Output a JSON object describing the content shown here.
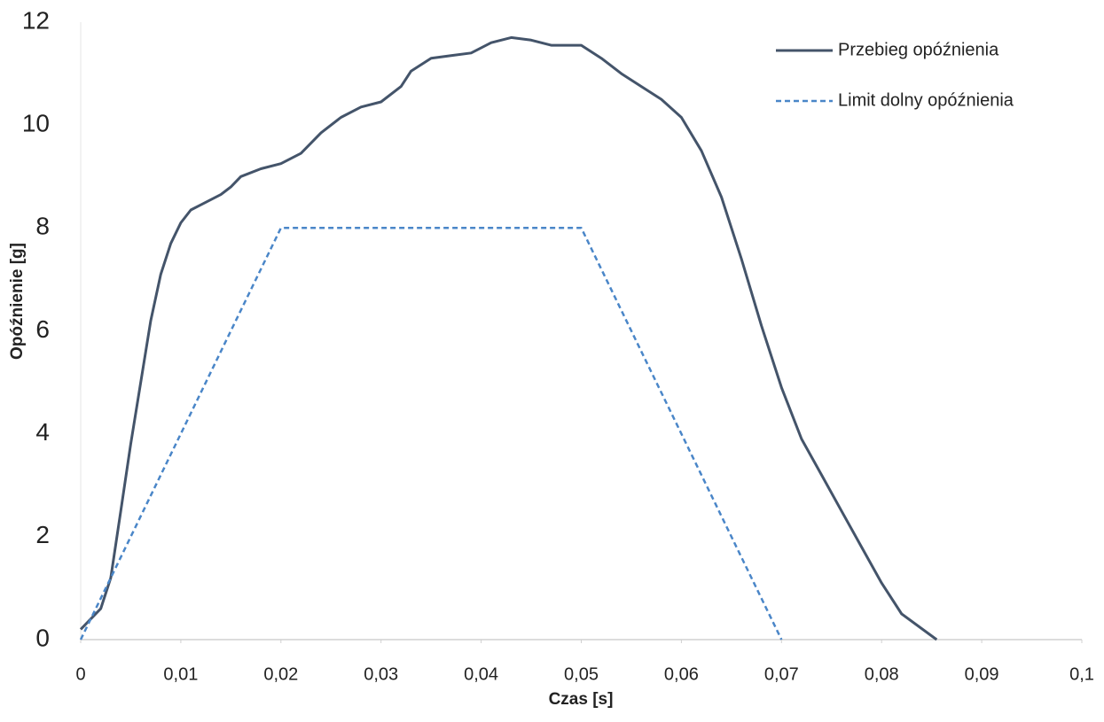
{
  "chart_data": {
    "type": "line",
    "x_label": "Czas [s]",
    "y_label": "Opóźnienie [g]",
    "xlim": [
      0,
      0.1
    ],
    "ylim": [
      0,
      12
    ],
    "xticks": [
      0,
      {
        "value": 0.01,
        "label": "0,01"
      },
      {
        "value": 0.02,
        "label": "0,02"
      },
      {
        "value": 0.03,
        "label": "0,03"
      },
      {
        "value": 0.04,
        "label": "0,04"
      },
      {
        "value": 0.05,
        "label": "0,05"
      },
      {
        "value": 0.06,
        "label": "0,06"
      },
      {
        "value": 0.07,
        "label": "0,07"
      },
      {
        "value": 0.08,
        "label": "0,08"
      },
      {
        "value": 0.09,
        "label": "0,09"
      },
      {
        "value": 0.1,
        "label": "0,1"
      }
    ],
    "yticks": [
      0,
      2,
      4,
      6,
      8,
      10,
      12
    ],
    "grid": false,
    "legend": "upper right",
    "series": [
      {
        "name": "Przebieg opóźnienia",
        "color": "#44546a",
        "dash": "solid",
        "x": [
          0,
          0.002,
          0.003,
          0.004,
          0.005,
          0.006,
          0.007,
          0.008,
          0.009,
          0.01,
          0.011,
          0.012,
          0.014,
          0.015,
          0.016,
          0.018,
          0.02,
          0.022,
          0.024,
          0.026,
          0.028,
          0.03,
          0.032,
          0.033,
          0.035,
          0.037,
          0.039,
          0.041,
          0.043,
          0.045,
          0.047,
          0.05,
          0.052,
          0.054,
          0.056,
          0.058,
          0.06,
          0.062,
          0.064,
          0.066,
          0.068,
          0.07,
          0.072,
          0.074,
          0.076,
          0.078,
          0.08,
          0.082,
          0.0855
        ],
        "values": [
          0.2,
          0.6,
          1.2,
          2.5,
          3.8,
          5.0,
          6.2,
          7.1,
          7.7,
          8.1,
          8.35,
          8.45,
          8.65,
          8.8,
          9.0,
          9.15,
          9.25,
          9.45,
          9.85,
          10.15,
          10.35,
          10.45,
          10.75,
          11.05,
          11.3,
          11.35,
          11.4,
          11.6,
          11.7,
          11.65,
          11.55,
          11.55,
          11.3,
          11.0,
          10.75,
          10.5,
          10.15,
          9.5,
          8.6,
          7.4,
          6.1,
          4.9,
          3.9,
          3.2,
          2.5,
          1.8,
          1.1,
          0.5,
          0
        ]
      },
      {
        "name": "Limit dolny opóźnienia",
        "color": "#4a86c8",
        "dash": "dashed",
        "x": [
          0,
          0.02,
          0.05,
          0.07
        ],
        "values": [
          0,
          8,
          8,
          0
        ]
      }
    ]
  }
}
